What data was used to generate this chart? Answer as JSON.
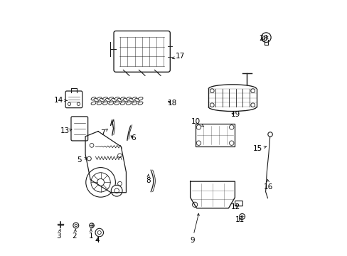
{
  "background_color": "#ffffff",
  "line_color": "#1a1a1a",
  "label_color": "#000000",
  "label_positions": {
    "1": [
      0.175,
      0.075,
      0.175,
      0.105
    ],
    "2": [
      0.11,
      0.075,
      0.115,
      0.105
    ],
    "3": [
      0.048,
      0.075,
      0.055,
      0.105
    ],
    "4": [
      0.2,
      0.06,
      0.205,
      0.075
    ],
    "5": [
      0.13,
      0.375,
      0.162,
      0.383
    ],
    "6": [
      0.34,
      0.46,
      0.325,
      0.478
    ],
    "7": [
      0.22,
      0.48,
      0.242,
      0.498
    ],
    "8": [
      0.4,
      0.295,
      0.4,
      0.32
    ],
    "9": [
      0.572,
      0.06,
      0.6,
      0.175
    ],
    "10": [
      0.585,
      0.525,
      0.625,
      0.502
    ],
    "11": [
      0.76,
      0.14,
      0.752,
      0.155
    ],
    "12": [
      0.742,
      0.19,
      0.748,
      0.202
    ],
    "13": [
      0.072,
      0.488,
      0.102,
      0.495
    ],
    "14": [
      0.048,
      0.608,
      0.082,
      0.608
    ],
    "15": [
      0.83,
      0.418,
      0.865,
      0.428
    ],
    "16": [
      0.872,
      0.268,
      0.868,
      0.3
    ],
    "17": [
      0.525,
      0.782,
      0.492,
      0.772
    ],
    "18": [
      0.494,
      0.598,
      0.468,
      0.608
    ],
    "19": [
      0.742,
      0.552,
      0.718,
      0.562
    ],
    "20": [
      0.852,
      0.852,
      0.84,
      0.838
    ]
  }
}
